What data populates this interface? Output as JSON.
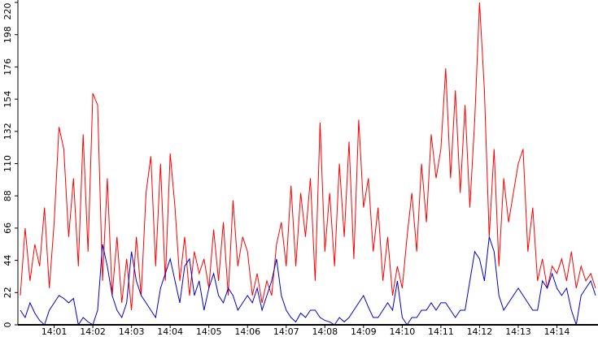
{
  "chart_data": {
    "type": "line",
    "categories": [
      null,
      null,
      null,
      null,
      null,
      null,
      null,
      "14:01",
      null,
      null,
      null,
      null,
      null,
      null,
      null,
      "14:02",
      null,
      null,
      null,
      null,
      null,
      null,
      null,
      "14:03",
      null,
      null,
      null,
      null,
      null,
      null,
      null,
      "14:04",
      null,
      null,
      null,
      null,
      null,
      null,
      null,
      "14:05",
      null,
      null,
      null,
      null,
      null,
      null,
      null,
      "14:06",
      null,
      null,
      null,
      null,
      null,
      null,
      null,
      "14:07",
      null,
      null,
      null,
      null,
      null,
      null,
      null,
      "14:08",
      null,
      null,
      null,
      null,
      null,
      null,
      null,
      "14:09",
      null,
      null,
      null,
      null,
      null,
      null,
      null,
      "14:10",
      null,
      null,
      null,
      null,
      null,
      null,
      null,
      "14:11",
      null,
      null,
      null,
      null,
      null,
      null,
      null,
      "14:12",
      null,
      null,
      null,
      null,
      null,
      null,
      null,
      "14:13",
      null,
      null,
      null,
      null,
      null,
      null,
      null,
      "14:14",
      null,
      null,
      null,
      null,
      null,
      null,
      null,
      null
    ],
    "series": [
      {
        "color": "#ff0000",
        "values": [
          20,
          66,
          30,
          55,
          40,
          80,
          25,
          70,
          135,
          120,
          60,
          100,
          40,
          130,
          50,
          158,
          150,
          30,
          100,
          20,
          60,
          15,
          45,
          10,
          60,
          20,
          90,
          115,
          40,
          110,
          30,
          117,
          80,
          30,
          60,
          20,
          50,
          35,
          45,
          25,
          65,
          30,
          70,
          20,
          85,
          40,
          60,
          50,
          20,
          35,
          15,
          30,
          20,
          55,
          70,
          40,
          95,
          40,
          90,
          60,
          100,
          30,
          138,
          50,
          90,
          40,
          110,
          60,
          125,
          45,
          140,
          80,
          100,
          50,
          80,
          30,
          60,
          20,
          40,
          25,
          60,
          90,
          50,
          110,
          70,
          130,
          100,
          120,
          175,
          100,
          160,
          90,
          150,
          80,
          140,
          220,
          160,
          60,
          120,
          40,
          100,
          70,
          90,
          110,
          120,
          50,
          80,
          30,
          45,
          25,
          40,
          35,
          45,
          30,
          50,
          25,
          40,
          30,
          35,
          25
        ]
      },
      {
        "color": "#0000cc",
        "values": [
          10,
          5,
          15,
          8,
          3,
          0,
          10,
          15,
          20,
          18,
          15,
          18,
          0,
          5,
          2,
          0,
          10,
          55,
          40,
          20,
          10,
          5,
          15,
          50,
          30,
          20,
          15,
          10,
          5,
          25,
          35,
          45,
          30,
          15,
          40,
          45,
          20,
          30,
          10,
          25,
          35,
          20,
          15,
          25,
          20,
          10,
          15,
          20,
          15,
          25,
          10,
          20,
          30,
          45,
          20,
          10,
          5,
          2,
          8,
          5,
          10,
          10,
          5,
          3,
          2,
          0,
          5,
          2,
          5,
          10,
          15,
          20,
          12,
          5,
          5,
          10,
          15,
          10,
          30,
          5,
          0,
          5,
          5,
          10,
          10,
          15,
          10,
          15,
          15,
          10,
          5,
          10,
          10,
          30,
          50,
          45,
          30,
          60,
          50,
          20,
          10,
          15,
          20,
          25,
          20,
          15,
          10,
          10,
          30,
          25,
          35,
          25,
          20,
          25,
          10,
          0,
          20,
          25,
          30,
          20
        ]
      }
    ],
    "ylim": [
      0,
      220
    ],
    "yticks": [
      0,
      22,
      44,
      66,
      88,
      110,
      132,
      154,
      176,
      198,
      220
    ]
  }
}
